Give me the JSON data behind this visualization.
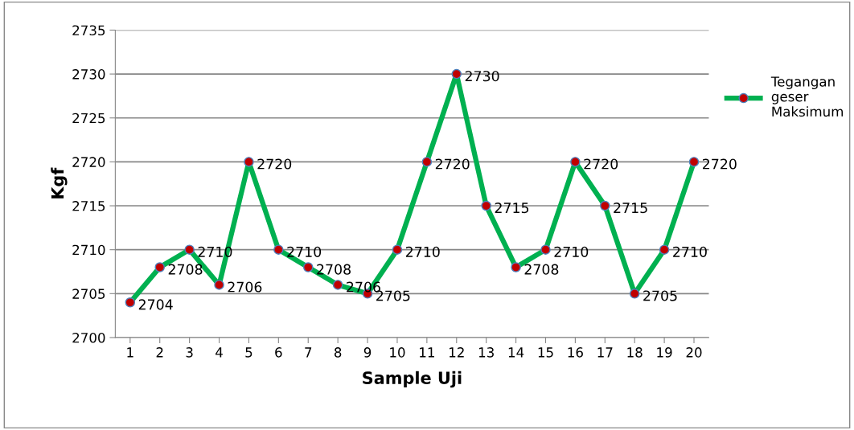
{
  "chart_data": {
    "type": "line",
    "xlabel": "Sample Uji",
    "ylabel": "Kgf",
    "categories": [
      "1",
      "2",
      "3",
      "4",
      "5",
      "6",
      "7",
      "8",
      "9",
      "10",
      "11",
      "12",
      "13",
      "14",
      "15",
      "16",
      "17",
      "18",
      "19",
      "20"
    ],
    "series": [
      {
        "name": "Tegangan geser Maksimum",
        "color": "#00b050",
        "values": [
          2704,
          2708,
          2710,
          2706,
          2720,
          2710,
          2708,
          2706,
          2705,
          2710,
          2720,
          2730,
          2715,
          2708,
          2710,
          2720,
          2715,
          2705,
          2710,
          2720
        ]
      }
    ],
    "ylim": [
      2700,
      2735
    ],
    "yticks": [
      2700,
      2705,
      2710,
      2715,
      2720,
      2725,
      2730,
      2735
    ],
    "grid": "y",
    "legend": "right",
    "marker": "circle",
    "line_style": "solid",
    "data_labels": true
  }
}
